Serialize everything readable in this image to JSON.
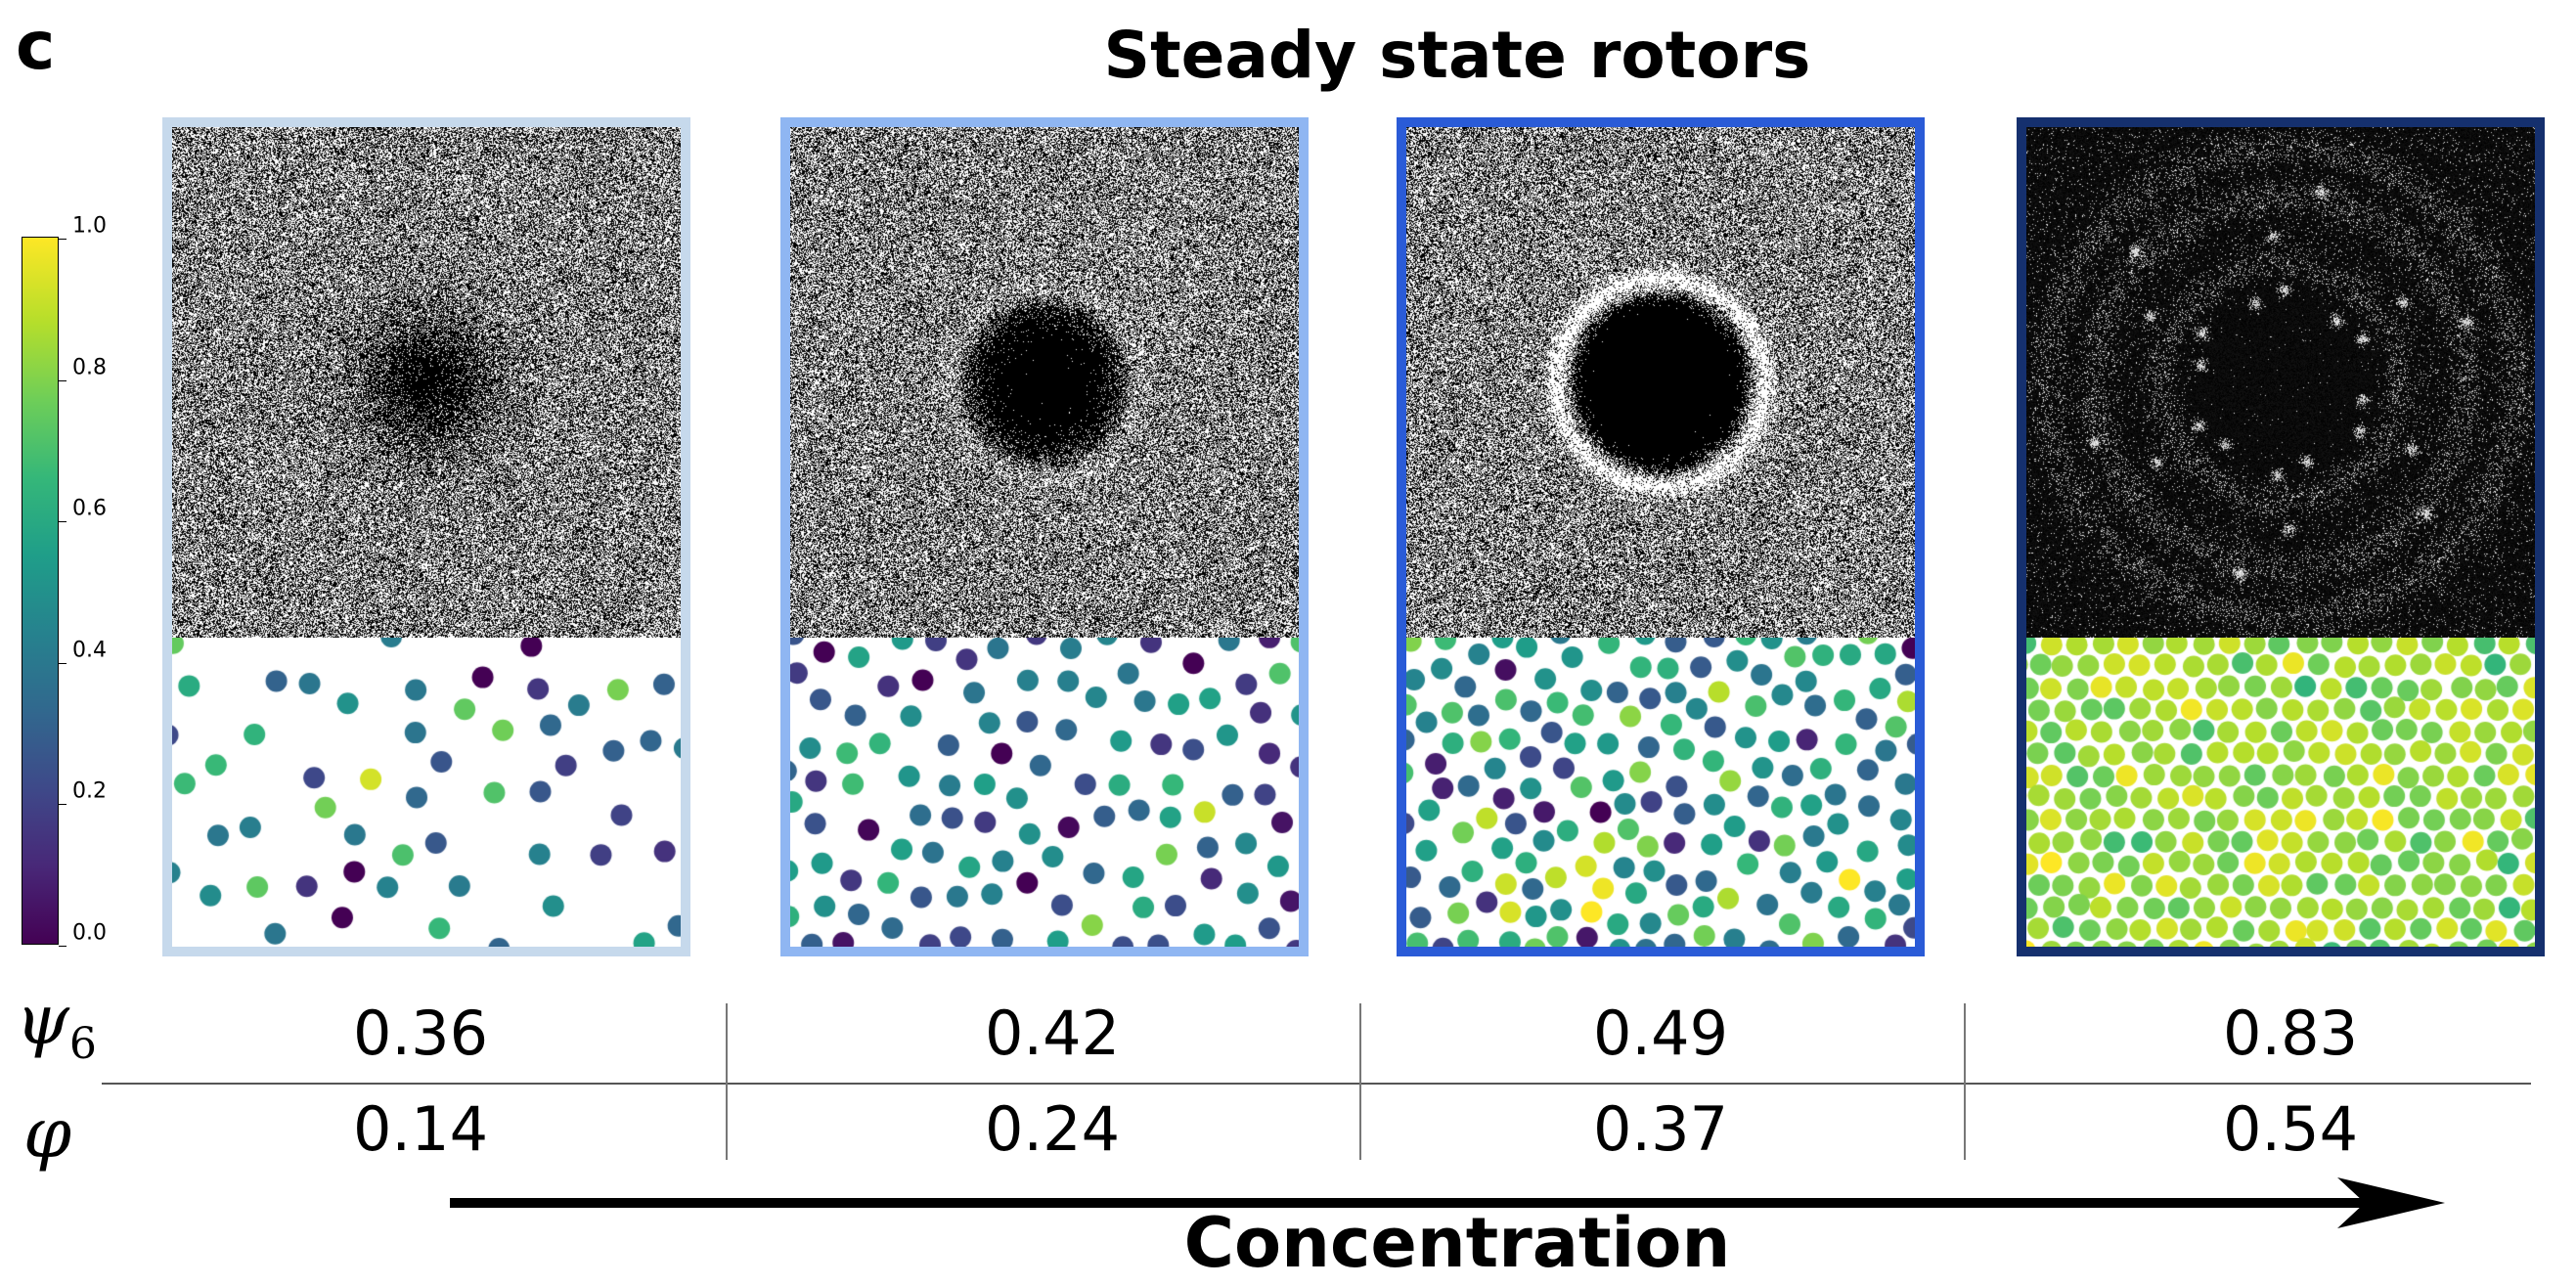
{
  "panel_letter": "c",
  "title": "Steady state rotors",
  "colorbar": {
    "colormap": "viridis",
    "min": 0.0,
    "max": 1.0,
    "ticks": [
      "0.0",
      "0.2",
      "0.4",
      "0.6",
      "0.8",
      "1.0"
    ]
  },
  "panels": [
    {
      "border_color": "#c6d9ec",
      "psi6": "0.36",
      "phi": "0.14"
    },
    {
      "border_color": "#8fb6f2",
      "psi6": "0.42",
      "phi": "0.24"
    },
    {
      "border_color": "#2a5bd7",
      "psi6": "0.49",
      "phi": "0.37"
    },
    {
      "border_color": "#15306e",
      "psi6": "0.83",
      "phi": "0.54"
    }
  ],
  "row_labels": {
    "psi6": "ψ",
    "psi6_sub": "6",
    "phi": "φ"
  },
  "axis_label": "Concentration"
}
